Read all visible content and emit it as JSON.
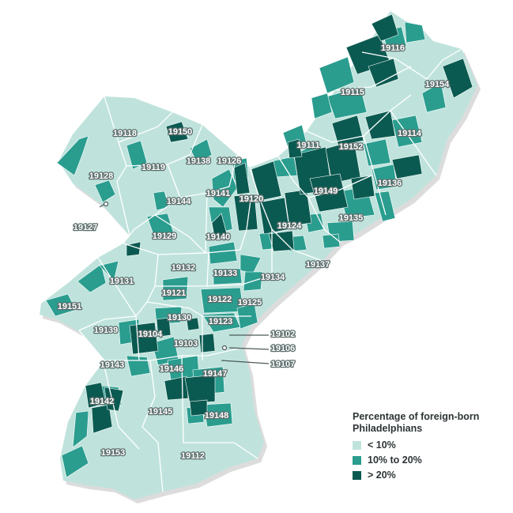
{
  "colors": {
    "low": "#bfe3dc",
    "mid": "#2a9d8f",
    "high": "#0b5a51",
    "boundary": "#ffffff",
    "shadow": "#d9d9d9"
  },
  "legend": {
    "title_line1": "Percentage of foreign-born",
    "title_line2": "Philadelphians",
    "items": [
      {
        "label": "< 10%",
        "level": "low"
      },
      {
        "label": "10% to 20%",
        "level": "mid"
      },
      {
        "label": "> 20%",
        "level": "high"
      }
    ]
  },
  "zip_codes": [
    "19116",
    "19154",
    "19115",
    "19150",
    "19118",
    "19111",
    "19152",
    "19114",
    "19138",
    "19126",
    "19119",
    "19128",
    "19141",
    "19120",
    "19149",
    "19136",
    "19144",
    "19127",
    "19124",
    "19135",
    "19129",
    "19140",
    "19132",
    "19137",
    "19133",
    "19134",
    "19131",
    "19121",
    "19122",
    "19125",
    "19151",
    "19130",
    "19123",
    "19102",
    "19139",
    "19104",
    "19103",
    "19106",
    "19107",
    "19143",
    "19146",
    "19147",
    "19142",
    "19145",
    "19148",
    "19153",
    "19112"
  ]
}
